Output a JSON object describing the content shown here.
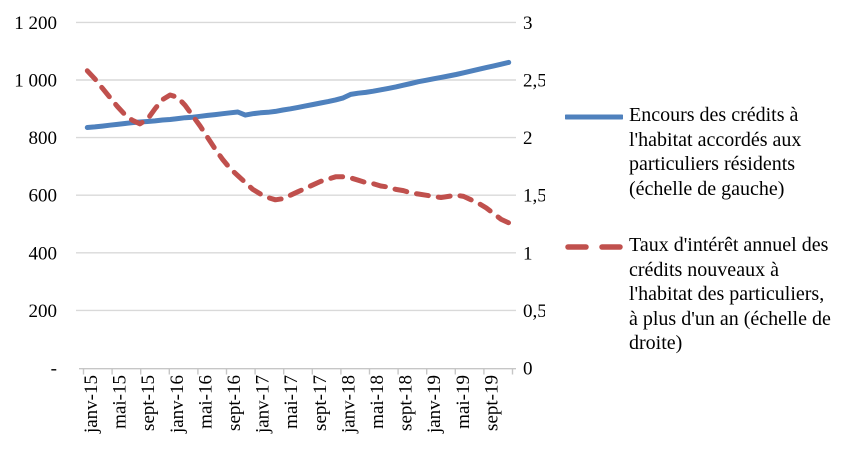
{
  "colors": {
    "blue_series": "#4F81BD",
    "red_series": "#C0504D",
    "gridline": "#D9D9D9",
    "axis_line": "#C6C6C6",
    "text": "#000000"
  },
  "legend": {
    "items": [
      {
        "label": "Encours des crédits à\nl'habitat accordés aux\nparticuliers résidents\n(échelle de gauche)"
      },
      {
        "label": "Taux d'intérêt annuel des\ncrédits nouveaux à\nl'habitat des particuliers,\nà plus d'un an (échelle de\ndroite)"
      }
    ]
  },
  "chart_data": {
    "type": "line",
    "title": "",
    "grid": true,
    "legend_position": "right",
    "x_tick_labels": [
      "janv-15",
      "mai-15",
      "sept-15",
      "janv-16",
      "mai-16",
      "sept-16",
      "janv-17",
      "mai-17",
      "sept-17",
      "janv-18",
      "mai-18",
      "sept-18",
      "janv-19",
      "mai-19",
      "sept-19"
    ],
    "x_tick_every": 4,
    "left_axis": {
      "min": 0,
      "max": 1200,
      "tick_step": 200,
      "ticks": [
        "-",
        "200",
        "400",
        "600",
        "800",
        "1 000",
        "1 200"
      ]
    },
    "right_axis": {
      "min": 0,
      "max": 3,
      "tick_step": 0.5,
      "ticks": [
        "0",
        "0,5",
        "1",
        "1,5",
        "2",
        "2,5",
        "3"
      ]
    },
    "series": [
      {
        "name": "Encours des crédits à l'habitat accordés aux particuliers résidents (échelle de gauche)",
        "axis": "left",
        "color": "#4F81BD",
        "style": "solid",
        "values": [
          835,
          837,
          840,
          843,
          846,
          849,
          852,
          854,
          856,
          858,
          861,
          863,
          866,
          869,
          871,
          874,
          877,
          880,
          883,
          886,
          889,
          878,
          883,
          886,
          888,
          891,
          896,
          900,
          905,
          910,
          915,
          920,
          925,
          931,
          938,
          950,
          954,
          957,
          961,
          966,
          971,
          976,
          982,
          988,
          994,
          999,
          1004,
          1009,
          1014,
          1019,
          1025,
          1031,
          1037,
          1043,
          1049,
          1055,
          1061
        ]
      },
      {
        "name": "Taux d'intérêt annuel des crédits nouveaux à l'habitat des particuliers, à plus d'un an (échelle de droite)",
        "axis": "right",
        "color": "#C0504D",
        "style": "dashed",
        "values": [
          2.58,
          2.51,
          2.43,
          2.35,
          2.27,
          2.2,
          2.15,
          2.12,
          2.16,
          2.25,
          2.33,
          2.37,
          2.35,
          2.28,
          2.19,
          2.1,
          2.0,
          1.9,
          1.81,
          1.73,
          1.67,
          1.61,
          1.55,
          1.51,
          1.48,
          1.46,
          1.47,
          1.5,
          1.53,
          1.56,
          1.59,
          1.62,
          1.64,
          1.66,
          1.66,
          1.65,
          1.63,
          1.61,
          1.6,
          1.58,
          1.57,
          1.55,
          1.54,
          1.52,
          1.51,
          1.5,
          1.49,
          1.48,
          1.49,
          1.5,
          1.49,
          1.46,
          1.43,
          1.39,
          1.34,
          1.29,
          1.26
        ]
      }
    ]
  }
}
